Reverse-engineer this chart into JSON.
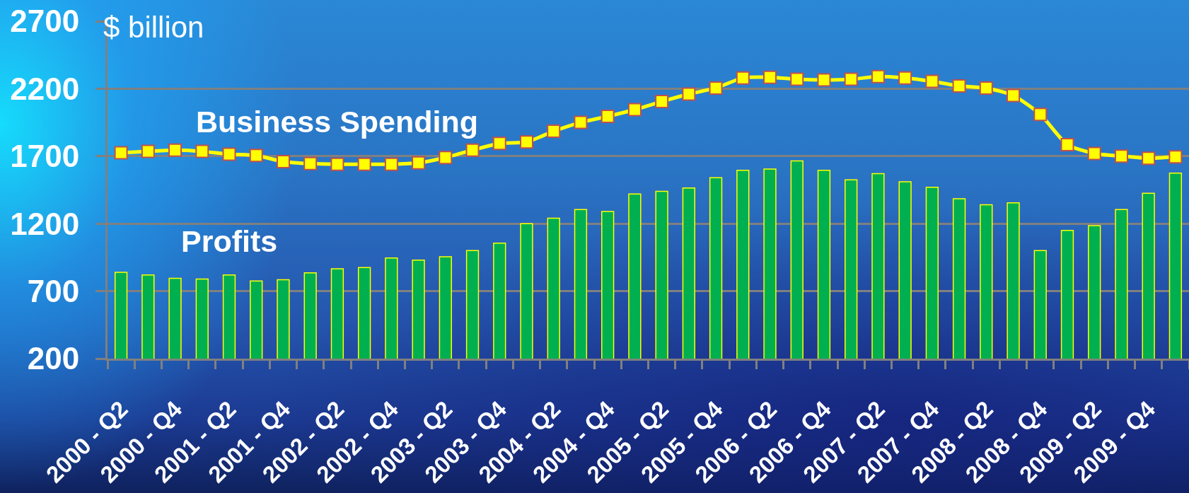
{
  "chart_data": {
    "type": "bar",
    "ylabel": "$ billion",
    "categories": [
      "2000 - Q2",
      null,
      "2000 - Q4",
      null,
      "2001 - Q2",
      null,
      "2001 - Q4",
      null,
      "2002 - Q2",
      null,
      "2002 - Q4",
      null,
      "2003 - Q2",
      null,
      "2003 - Q4",
      null,
      "2004 - Q2",
      null,
      "2004 - Q4",
      null,
      "2005 - Q2",
      null,
      "2005 - Q4",
      null,
      "2006 - Q2",
      null,
      "2006 - Q4",
      null,
      "2007 - Q2",
      null,
      "2007 - Q4",
      null,
      "2008 - Q2",
      null,
      "2008 - Q4",
      null,
      "2009 - Q2",
      null,
      "2009 - Q4",
      null
    ],
    "series": [
      {
        "name": "Profits",
        "color": "#00b050",
        "values": [
          840,
          820,
          795,
          790,
          820,
          775,
          785,
          835,
          865,
          875,
          945,
          930,
          955,
          1000,
          1055,
          1200,
          1240,
          1305,
          1290,
          1420,
          1440,
          1465,
          1540,
          1595,
          1605,
          1665,
          1595,
          1525,
          1570,
          1510,
          1470,
          1385,
          1340,
          1355,
          1000,
          1150,
          1185,
          1305,
          1425,
          1575
        ]
      },
      {
        "name": "Business Spending",
        "type": "line",
        "color": "#ffff00",
        "values": [
          1725,
          1735,
          1745,
          1735,
          1715,
          1705,
          1660,
          1645,
          1640,
          1640,
          1640,
          1650,
          1690,
          1745,
          1795,
          1805,
          1885,
          1950,
          1995,
          2045,
          2105,
          2160,
          2205,
          2280,
          2285,
          2270,
          2265,
          2270,
          2290,
          2280,
          2255,
          2220,
          2205,
          2150,
          2010,
          1785,
          1720,
          1700,
          1685,
          1695
        ]
      }
    ],
    "ylim": [
      200,
      2700
    ],
    "yticks": [
      200,
      700,
      1200,
      1700,
      2200,
      2700
    ],
    "grid": "y",
    "marker": "square",
    "line_style": "solid"
  }
}
